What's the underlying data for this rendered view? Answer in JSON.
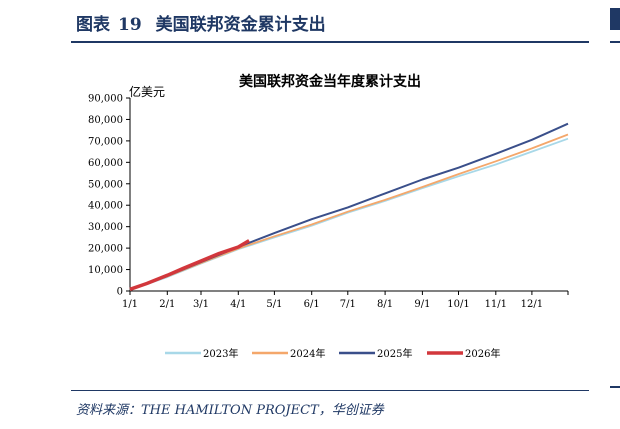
{
  "header": {
    "figure_label": "图表",
    "figure_number": "19",
    "figure_title": "美国联邦资金累计支出"
  },
  "source": "资料来源：THE HAMILTON PROJECT，华创证券",
  "chart_data": {
    "type": "line",
    "title": "美国联邦资金当年度累计支出",
    "ylabel": "亿美元",
    "xlabel": "",
    "ylim": [
      0,
      90000
    ],
    "yticks": [
      0,
      10000,
      20000,
      30000,
      40000,
      50000,
      60000,
      70000,
      80000,
      90000
    ],
    "ytick_labels": [
      "0",
      "10,000",
      "20,000",
      "30,000",
      "40,000",
      "50,000",
      "60,000",
      "70,000",
      "80,000",
      "90,000"
    ],
    "x_unit": "day of year",
    "xlim": [
      1,
      365
    ],
    "xticks": [
      1,
      32,
      60,
      91,
      121,
      152,
      182,
      213,
      244,
      274,
      305,
      335
    ],
    "xtick_labels": [
      "1/1",
      "2/1",
      "3/1",
      "4/1",
      "5/1",
      "6/1",
      "7/1",
      "8/1",
      "9/1",
      "10/1",
      "11/1",
      "12/1"
    ],
    "legend_position": "bottom",
    "series": [
      {
        "name": "2023年",
        "color": "#a8d8e8",
        "x": [
          1,
          32,
          60,
          91,
          121,
          152,
          182,
          213,
          244,
          274,
          305,
          335,
          365
        ],
        "y": [
          500,
          6500,
          12800,
          19500,
          25000,
          30500,
          36500,
          42000,
          48000,
          53500,
          59000,
          65000,
          71000
        ]
      },
      {
        "name": "2024年",
        "color": "#f4a76b",
        "x": [
          1,
          32,
          60,
          91,
          121,
          152,
          182,
          213,
          244,
          274,
          305,
          335,
          365
        ],
        "y": [
          500,
          6800,
          13000,
          19800,
          25500,
          31000,
          37000,
          42500,
          48500,
          54500,
          60500,
          66500,
          73000
        ]
      },
      {
        "name": "2025年",
        "color": "#3a4f8a",
        "x": [
          1,
          32,
          60,
          91,
          121,
          152,
          182,
          213,
          244,
          274,
          305,
          335,
          365
        ],
        "y": [
          800,
          7000,
          13500,
          20500,
          27000,
          33500,
          39000,
          45500,
          52000,
          57500,
          64000,
          70500,
          78000
        ]
      },
      {
        "name": "2026年",
        "color": "#d2373c",
        "x": [
          1,
          15,
          32,
          45,
          60,
          75,
          91,
          100
        ],
        "y": [
          800,
          3500,
          7300,
          10500,
          14000,
          17500,
          20500,
          23500
        ]
      }
    ]
  }
}
